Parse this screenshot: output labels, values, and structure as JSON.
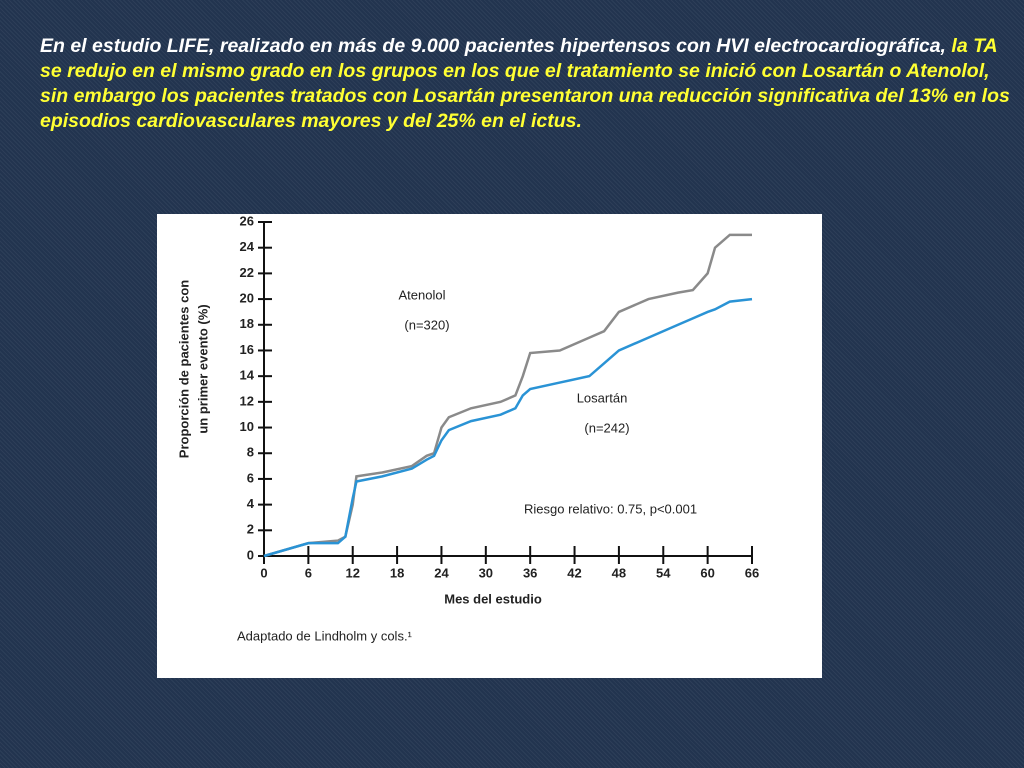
{
  "slide": {
    "paragraph": [
      "En el estudio LIFE, realizado en más de 9.000 pacientes hipertensos con HVI electrocardiográfica,",
      "la TA se redujo en el mismo grado en los grupos en los que el tratamiento se inició con Losartán o  Atenolol, sin embargo los pacientes tratados con Losartán presentaron una reducción significativa del 13% en los episodios cardiovasculares mayores  y del 25% en el ictus."
    ]
  },
  "chart_data": {
    "type": "line",
    "xlabel": "Mes del estudio",
    "ylabel": [
      "Proporción de pacientes con",
      "un primer evento (%)"
    ],
    "x": [
      0,
      6,
      10,
      11,
      12,
      12.5,
      16,
      20,
      22,
      23,
      24,
      25,
      28,
      32,
      34,
      35,
      36,
      40,
      44,
      46,
      48,
      52,
      56,
      58,
      60,
      61,
      63,
      66
    ],
    "series": [
      {
        "name": "Atenolol",
        "n": "(n=320)",
        "color": "#8a8a8a",
        "values": [
          0,
          1,
          1.2,
          1.5,
          4,
          6.2,
          6.5,
          7,
          7.8,
          8,
          10,
          10.8,
          11.5,
          12,
          12.5,
          14,
          15.8,
          16,
          17,
          17.5,
          19,
          20,
          20.5,
          20.7,
          22,
          24,
          25,
          25
        ]
      },
      {
        "name": "Losartán",
        "n": "(n=242)",
        "color": "#2a93d5",
        "values": [
          0,
          1,
          1,
          1.5,
          4.5,
          5.8,
          6.2,
          6.8,
          7.5,
          7.8,
          9,
          9.8,
          10.5,
          11,
          11.5,
          12.5,
          13,
          13.5,
          14,
          15,
          16,
          17,
          18,
          18.5,
          19,
          19.2,
          19.8,
          20
        ]
      }
    ],
    "xlim": [
      0,
      66
    ],
    "xticks": [
      0,
      6,
      12,
      18,
      24,
      30,
      36,
      42,
      48,
      54,
      60,
      66
    ],
    "ylim": [
      0,
      26
    ],
    "yticks": [
      0,
      2,
      4,
      6,
      8,
      10,
      12,
      14,
      16,
      18,
      20,
      22,
      24,
      26
    ],
    "grid": false,
    "annotations": [
      "Riesgo relativo: 0.75, p<0.001",
      "Adaptado de Lindholm y cols.¹"
    ]
  }
}
